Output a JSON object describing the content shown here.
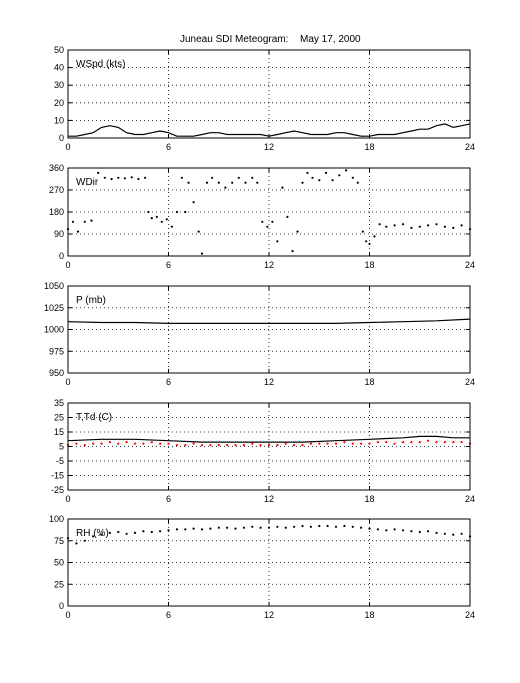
{
  "figure": {
    "title": "Juneau SDI Meteogram:",
    "date": "May 17, 2000"
  },
  "chart_data": [
    {
      "type": "line",
      "label": "WSpd (kts)",
      "xlim": [
        0,
        24
      ],
      "xticks": [
        0,
        6,
        12,
        18,
        24
      ],
      "ylim": [
        0,
        50
      ],
      "yticks": [
        0,
        10,
        20,
        30,
        40,
        50
      ],
      "grid": true,
      "series": [
        {
          "color": "#000000",
          "style": "line",
          "x": [
            0,
            0.5,
            1,
            1.5,
            2,
            2.5,
            3,
            3.5,
            4,
            4.5,
            5,
            5.5,
            6,
            6.5,
            7,
            7.5,
            8,
            8.5,
            9,
            9.5,
            10,
            10.5,
            11,
            11.5,
            12,
            12.5,
            13,
            13.5,
            14,
            14.5,
            15,
            15.5,
            16,
            16.5,
            17,
            17.5,
            18,
            18.5,
            19,
            19.5,
            20,
            20.5,
            21,
            21.5,
            22,
            22.5,
            23,
            23.5,
            24
          ],
          "values": [
            1,
            1,
            2,
            3,
            6,
            7,
            6,
            3,
            2,
            2,
            3,
            4,
            3,
            1,
            1,
            1,
            2,
            3,
            3,
            2,
            2,
            2,
            2,
            2,
            1,
            2,
            3,
            4,
            3,
            2,
            2,
            2,
            3,
            3,
            2,
            1,
            1,
            2,
            2,
            2,
            3,
            4,
            5,
            5,
            7,
            8,
            6,
            7,
            8
          ]
        }
      ]
    },
    {
      "type": "scatter",
      "label": "WDir",
      "xlim": [
        0,
        24
      ],
      "xticks": [
        0,
        6,
        12,
        18,
        24
      ],
      "ylim": [
        0,
        360
      ],
      "yticks": [
        0,
        90,
        180,
        270,
        360
      ],
      "grid": true,
      "series": [
        {
          "color": "#000000",
          "style": "dots",
          "x": [
            0,
            0.3,
            0.6,
            1.0,
            1.4,
            1.8,
            2.2,
            2.6,
            3.0,
            3.4,
            3.8,
            4.2,
            4.6,
            4.8,
            5.0,
            5.3,
            5.6,
            5.9,
            6.2,
            6.5,
            6.8,
            7.0,
            7.2,
            7.5,
            7.8,
            8.0,
            8.3,
            8.6,
            9.0,
            9.4,
            9.8,
            10.2,
            10.6,
            11.0,
            11.3,
            11.6,
            11.9,
            12.2,
            12.5,
            12.8,
            13.1,
            13.4,
            13.7,
            14.0,
            14.3,
            14.6,
            15.0,
            15.4,
            15.8,
            16.2,
            16.6,
            17.0,
            17.3,
            17.6,
            17.8,
            18.0,
            18.3,
            18.6,
            19.0,
            19.5,
            20.0,
            20.5,
            21.0,
            21.5,
            22.0,
            22.5,
            23.0,
            23.5,
            24.0
          ],
          "values": [
            110,
            140,
            100,
            140,
            145,
            340,
            320,
            315,
            320,
            318,
            322,
            315,
            320,
            180,
            155,
            160,
            140,
            150,
            120,
            180,
            320,
            180,
            300,
            220,
            100,
            10,
            300,
            320,
            300,
            280,
            300,
            320,
            300,
            320,
            300,
            140,
            120,
            140,
            60,
            280,
            160,
            20,
            100,
            300,
            340,
            320,
            310,
            340,
            310,
            330,
            350,
            320,
            300,
            100,
            60,
            50,
            80,
            130,
            120,
            125,
            130,
            115,
            120,
            125,
            130,
            120,
            115,
            125,
            110
          ]
        }
      ]
    },
    {
      "type": "line",
      "label": "P (mb)",
      "xlim": [
        0,
        24
      ],
      "xticks": [
        0,
        6,
        12,
        18,
        24
      ],
      "ylim": [
        950,
        1050
      ],
      "yticks": [
        950,
        975,
        1000,
        1025,
        1050
      ],
      "grid": true,
      "series": [
        {
          "color": "#000000",
          "style": "line",
          "x": [
            0,
            2,
            4,
            6,
            8,
            10,
            12,
            14,
            16,
            18,
            20,
            22,
            24
          ],
          "values": [
            1009,
            1008,
            1008,
            1007,
            1007,
            1007,
            1007,
            1007,
            1007,
            1008,
            1009,
            1010,
            1012
          ]
        }
      ]
    },
    {
      "type": "line",
      "label": "T,Td (C)",
      "xlim": [
        0,
        24
      ],
      "xticks": [
        0,
        6,
        12,
        18,
        24
      ],
      "ylim": [
        -25,
        35
      ],
      "yticks": [
        -25,
        -15,
        -5,
        5,
        15,
        25,
        35
      ],
      "grid": true,
      "series": [
        {
          "color": "#000000",
          "style": "line",
          "x": [
            0,
            2,
            4,
            6,
            8,
            10,
            12,
            14,
            16,
            18,
            20,
            21,
            22,
            23,
            24
          ],
          "values": [
            9,
            10,
            10,
            9,
            8,
            8,
            8,
            8,
            9,
            10,
            11,
            12,
            12,
            11,
            11
          ]
        },
        {
          "color": "#ff0000",
          "style": "dots",
          "x": [
            0,
            0.5,
            1,
            1.5,
            2,
            2.5,
            3,
            3.5,
            4,
            4.5,
            5,
            5.5,
            6,
            6.5,
            7,
            7.5,
            8,
            8.5,
            9,
            9.5,
            10,
            10.5,
            11,
            11.5,
            12,
            12.5,
            13,
            13.5,
            14,
            14.5,
            15,
            15.5,
            16,
            16.5,
            17,
            17.5,
            18,
            18.5,
            19,
            19.5,
            20,
            20.5,
            21,
            21.5,
            22,
            22.5,
            23,
            23.5,
            24
          ],
          "values": [
            6,
            7,
            6,
            7,
            7,
            8,
            7,
            8,
            7,
            7,
            8,
            7,
            7,
            6,
            6,
            7,
            6,
            6,
            6,
            6,
            6,
            6,
            7,
            6,
            6,
            6,
            7,
            6,
            6,
            7,
            7,
            7,
            7,
            8,
            7,
            7,
            7,
            8,
            8,
            7,
            8,
            8,
            8,
            9,
            8,
            8,
            8,
            8,
            7
          ]
        }
      ]
    },
    {
      "type": "scatter",
      "label": "RH (%)",
      "xlim": [
        0,
        24
      ],
      "xticks": [
        0,
        6,
        12,
        18,
        24
      ],
      "ylim": [
        0,
        100
      ],
      "yticks": [
        0,
        25,
        50,
        75,
        100
      ],
      "grid": true,
      "series": [
        {
          "color": "#000000",
          "style": "dots",
          "x": [
            0,
            0.5,
            1,
            1.5,
            2,
            2.5,
            3,
            3.5,
            4,
            4.5,
            5,
            5.5,
            6,
            6.5,
            7,
            7.5,
            8,
            8.5,
            9,
            9.5,
            10,
            10.5,
            11,
            11.5,
            12,
            12.5,
            13,
            13.5,
            14,
            14.5,
            15,
            15.5,
            16,
            16.5,
            17,
            17.5,
            18,
            18.5,
            19,
            19.5,
            20,
            20.5,
            21,
            21.5,
            22,
            22.5,
            23,
            23.5,
            24
          ],
          "values": [
            78,
            72,
            75,
            80,
            82,
            84,
            85,
            83,
            84,
            86,
            85,
            86,
            87,
            88,
            88,
            89,
            88,
            89,
            90,
            90,
            89,
            90,
            91,
            90,
            90,
            91,
            90,
            91,
            92,
            91,
            92,
            92,
            91,
            92,
            91,
            90,
            89,
            88,
            87,
            88,
            87,
            86,
            85,
            86,
            84,
            83,
            82,
            83,
            80
          ]
        }
      ]
    }
  ]
}
